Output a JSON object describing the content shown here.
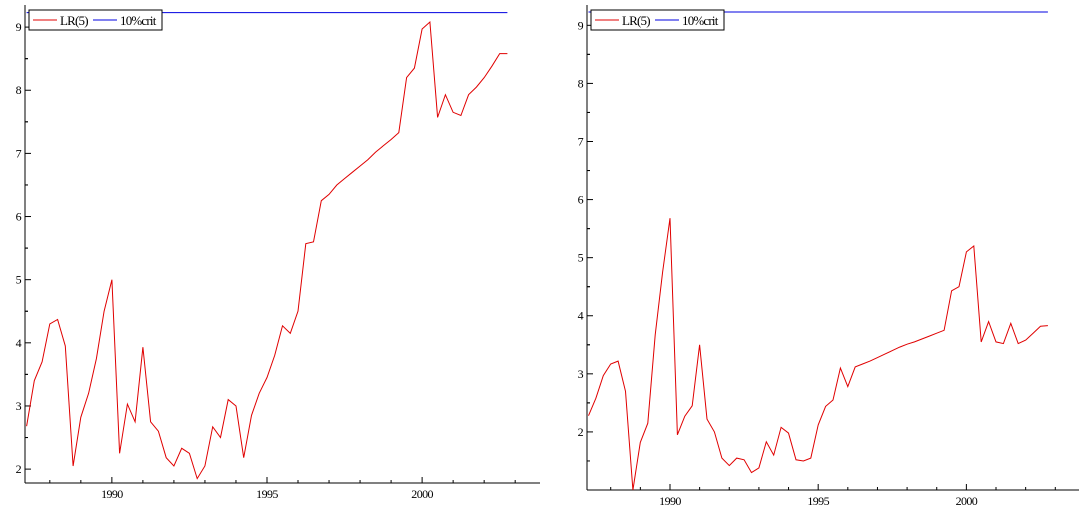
{
  "chart_data": [
    {
      "type": "line",
      "title": "",
      "xlabel": "",
      "ylabel": "",
      "xlim": [
        1987.2,
        2003.8
      ],
      "ylim": [
        1.78,
        9.35
      ],
      "xticks": [
        1990,
        1995,
        2000
      ],
      "yticks": [
        2,
        3,
        4,
        5,
        6,
        7,
        8,
        9
      ],
      "legend_position": "top-left",
      "series": [
        {
          "name": "LR(5)",
          "color": "#e00000",
          "x": [
            1987.25,
            1987.5,
            1987.75,
            1988.0,
            1988.25,
            1988.5,
            1988.75,
            1989.0,
            1989.25,
            1989.5,
            1989.75,
            1990.0,
            1990.25,
            1990.5,
            1990.75,
            1991.0,
            1991.25,
            1991.5,
            1991.75,
            1992.0,
            1992.25,
            1992.5,
            1992.75,
            1993.0,
            1993.25,
            1993.5,
            1993.75,
            1994.0,
            1994.25,
            1994.5,
            1994.75,
            1995.0,
            1995.25,
            1995.5,
            1995.75,
            1996.0,
            1996.25,
            1996.5,
            1996.75,
            1997.0,
            1997.25,
            1997.5,
            1997.75,
            1998.0,
            1998.25,
            1998.5,
            1998.75,
            1999.0,
            1999.25,
            1999.5,
            1999.75,
            2000.0,
            2000.25,
            2000.5,
            2000.75,
            2001.0,
            2001.25,
            2001.5,
            2001.75,
            2002.0,
            2002.25,
            2002.5,
            2002.75
          ],
          "y": [
            2.68,
            3.4,
            3.7,
            4.3,
            4.37,
            3.95,
            2.05,
            2.82,
            3.2,
            3.75,
            4.5,
            5.0,
            2.25,
            3.03,
            2.75,
            3.93,
            2.75,
            2.6,
            2.18,
            2.05,
            2.33,
            2.25,
            1.85,
            2.05,
            2.67,
            2.5,
            3.1,
            3.0,
            2.18,
            2.85,
            3.2,
            3.45,
            3.8,
            4.27,
            4.15,
            4.5,
            5.57,
            5.6,
            6.25,
            6.35,
            6.5,
            6.6,
            6.7,
            6.8,
            6.9,
            7.02,
            7.12,
            7.22,
            7.33,
            8.2,
            8.35,
            8.97,
            9.08,
            7.57,
            7.93,
            7.65,
            7.6,
            7.93,
            8.05,
            8.2,
            8.38,
            8.58,
            8.58
          ]
        },
        {
          "name": "10%crit",
          "color": "#0000e0",
          "x": [
            1987.25,
            2002.75
          ],
          "y": [
            9.23,
            9.23
          ]
        }
      ]
    },
    {
      "type": "line",
      "title": "",
      "xlabel": "",
      "ylabel": "",
      "xlim": [
        1987.2,
        2003.8
      ],
      "ylim": [
        1.0,
        9.35
      ],
      "xticks": [
        1990,
        1995,
        2000
      ],
      "yticks": [
        2,
        3,
        4,
        5,
        6,
        7,
        8,
        9
      ],
      "legend_position": "top-left",
      "series": [
        {
          "name": "LR(5)",
          "color": "#e00000",
          "x": [
            1987.25,
            1987.5,
            1987.75,
            1988.0,
            1988.25,
            1988.5,
            1988.75,
            1989.0,
            1989.25,
            1989.5,
            1989.75,
            1990.0,
            1990.25,
            1990.5,
            1990.75,
            1991.0,
            1991.25,
            1991.5,
            1991.75,
            1992.0,
            1992.25,
            1992.5,
            1992.75,
            1993.0,
            1993.25,
            1993.5,
            1993.75,
            1994.0,
            1994.25,
            1994.5,
            1994.75,
            1995.0,
            1995.25,
            1995.5,
            1995.75,
            1996.0,
            1996.25,
            1996.5,
            1996.75,
            1997.0,
            1997.25,
            1997.5,
            1997.75,
            1998.0,
            1998.25,
            1998.5,
            1998.75,
            1999.0,
            1999.25,
            1999.5,
            1999.75,
            2000.0,
            2000.25,
            2000.5,
            2000.75,
            2001.0,
            2001.25,
            2001.5,
            2001.75,
            2002.0,
            2002.25,
            2002.5,
            2002.75
          ],
          "y": [
            2.28,
            2.58,
            2.97,
            3.17,
            3.22,
            2.7,
            1.0,
            1.82,
            2.15,
            3.67,
            4.75,
            5.68,
            1.95,
            2.27,
            2.45,
            3.5,
            2.22,
            2.0,
            1.55,
            1.42,
            1.55,
            1.52,
            1.3,
            1.38,
            1.83,
            1.6,
            2.08,
            1.98,
            1.52,
            1.5,
            1.55,
            2.12,
            2.44,
            2.55,
            3.1,
            2.78,
            3.12,
            3.17,
            3.22,
            3.28,
            3.34,
            3.4,
            3.46,
            3.51,
            3.55,
            3.6,
            3.65,
            3.7,
            3.75,
            4.43,
            4.5,
            5.1,
            5.2,
            3.55,
            3.9,
            3.55,
            3.52,
            3.87,
            3.52,
            3.58,
            3.7,
            3.82,
            3.83
          ]
        },
        {
          "name": "10%crit",
          "color": "#0000e0",
          "x": [
            1987.25,
            2002.75
          ],
          "y": [
            9.23,
            9.23
          ]
        }
      ]
    }
  ]
}
